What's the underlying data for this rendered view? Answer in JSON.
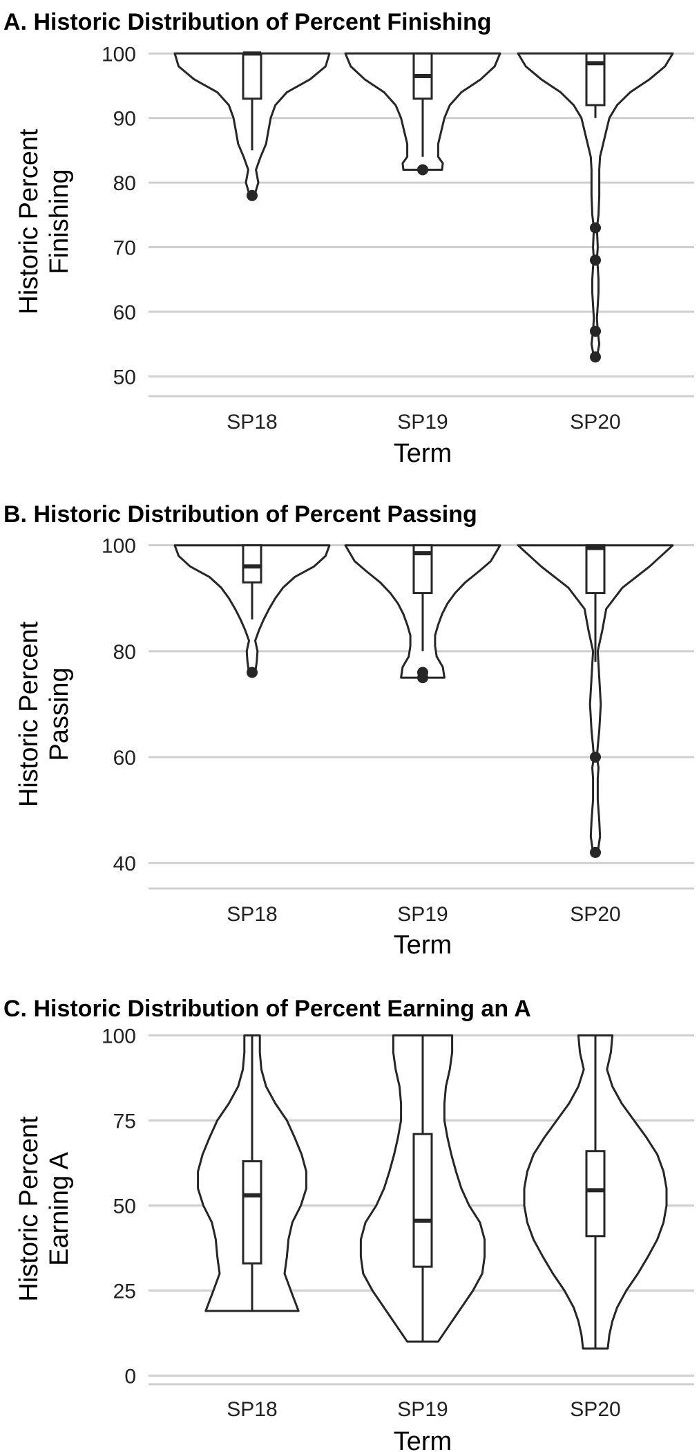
{
  "chart_data": [
    {
      "type": "violin",
      "title": "A. Historic Distribution of Percent Finishing",
      "xlabel": "Term",
      "ylabel": [
        "Historic Percent",
        "Finishing"
      ],
      "categories": [
        "SP18",
        "SP19",
        "SP20"
      ],
      "ylim": [
        48,
        101
      ],
      "yticks": [
        50,
        60,
        70,
        80,
        90,
        100
      ],
      "grid": true,
      "box": [
        {
          "min": 85,
          "q1": 93,
          "median": 100,
          "q3": 100,
          "max": 100
        },
        {
          "min": 84,
          "q1": 93,
          "median": 96.5,
          "q3": 100,
          "max": 100
        },
        {
          "min": 90,
          "q1": 92,
          "median": 98.5,
          "q3": 100,
          "max": 100
        }
      ],
      "outliers": [
        [
          78
        ],
        [
          82
        ],
        [
          73,
          68,
          57,
          53
        ]
      ],
      "violin": [
        {
          "y": [
            78,
            80,
            82,
            84,
            86,
            88,
            90,
            92,
            94,
            96,
            98,
            100
          ],
          "w": [
            0.03,
            0.08,
            0.05,
            0.11,
            0.18,
            0.21,
            0.24,
            0.3,
            0.45,
            0.75,
            0.95,
            1.0
          ]
        },
        {
          "y": [
            82,
            83,
            84,
            86,
            88,
            90,
            92,
            94,
            96,
            98,
            100
          ],
          "w": [
            0.25,
            0.26,
            0.2,
            0.2,
            0.24,
            0.28,
            0.35,
            0.5,
            0.75,
            0.93,
            1.0
          ]
        },
        {
          "y": [
            53,
            55,
            57,
            59,
            61,
            63,
            65,
            67,
            68,
            70,
            73,
            75,
            78,
            80,
            82,
            84,
            86,
            88,
            90,
            92,
            94,
            96,
            98,
            100
          ],
          "w": [
            0.02,
            0.05,
            0.03,
            0.02,
            0.03,
            0.04,
            0.04,
            0.03,
            0.02,
            0.03,
            0.02,
            0.04,
            0.05,
            0.05,
            0.05,
            0.06,
            0.1,
            0.14,
            0.18,
            0.28,
            0.45,
            0.7,
            0.9,
            1.0
          ]
        }
      ]
    },
    {
      "type": "violin",
      "title": "B. Historic Distribution of Percent Passing",
      "xlabel": "Term",
      "ylabel": [
        "Historic Percent",
        "Passing"
      ],
      "categories": [
        "SP18",
        "SP19",
        "SP20"
      ],
      "ylim": [
        36.5,
        101
      ],
      "yticks": [
        40,
        60,
        80,
        100
      ],
      "grid": true,
      "box": [
        {
          "min": 86,
          "q1": 93,
          "median": 96,
          "q3": 100,
          "max": 100
        },
        {
          "min": 80,
          "q1": 91,
          "median": 98.5,
          "q3": 100,
          "max": 100
        },
        {
          "min": 78,
          "q1": 91,
          "median": 99.5,
          "q3": 100,
          "max": 100
        }
      ],
      "outliers": [
        [
          76
        ],
        [
          76,
          75
        ],
        [
          60,
          42
        ]
      ],
      "violin": [
        {
          "y": [
            76,
            78,
            80,
            82,
            84,
            86,
            88,
            90,
            92,
            94,
            96,
            98,
            100
          ],
          "w": [
            0.04,
            0.06,
            0.07,
            0.04,
            0.09,
            0.15,
            0.22,
            0.3,
            0.4,
            0.55,
            0.8,
            0.95,
            1.0
          ]
        },
        {
          "y": [
            75,
            77,
            79,
            81,
            83,
            85,
            87,
            89,
            91,
            93,
            95,
            97,
            100
          ],
          "w": [
            0.28,
            0.26,
            0.18,
            0.16,
            0.16,
            0.2,
            0.25,
            0.32,
            0.42,
            0.55,
            0.72,
            0.88,
            1.0
          ]
        },
        {
          "y": [
            42,
            45,
            48,
            52,
            56,
            58,
            60,
            62,
            65,
            70,
            75,
            80,
            84,
            88,
            92,
            96,
            100
          ],
          "w": [
            0.03,
            0.06,
            0.05,
            0.03,
            0.03,
            0.04,
            0.02,
            0.03,
            0.05,
            0.07,
            0.05,
            0.03,
            0.09,
            0.14,
            0.35,
            0.7,
            1.0
          ]
        }
      ]
    },
    {
      "type": "violin",
      "title": "C. Historic Distribution of Percent Earning an A",
      "xlabel": "Term",
      "ylabel": [
        "Historic Percent",
        "Earning A"
      ],
      "categories": [
        "SP18",
        "SP19",
        "SP20"
      ],
      "ylim": [
        -0.5,
        100.5
      ],
      "yticks": [
        0,
        25,
        50,
        75,
        100
      ],
      "grid": true,
      "box": [
        {
          "min": 19,
          "q1": 33,
          "median": 53,
          "q3": 63,
          "max": 100
        },
        {
          "min": 10,
          "q1": 32,
          "median": 45.5,
          "q3": 71,
          "max": 100
        },
        {
          "min": 8,
          "q1": 41,
          "median": 54.5,
          "q3": 66,
          "max": 100
        }
      ],
      "outliers": [
        [],
        [],
        []
      ],
      "violin": [
        {
          "y": [
            19,
            25,
            30,
            35,
            40,
            45,
            50,
            55,
            60,
            65,
            70,
            75,
            80,
            85,
            90,
            95,
            100
          ],
          "w": [
            0.6,
            0.5,
            0.42,
            0.45,
            0.47,
            0.52,
            0.63,
            0.7,
            0.7,
            0.64,
            0.55,
            0.45,
            0.3,
            0.18,
            0.12,
            0.1,
            0.1
          ]
        },
        {
          "y": [
            10,
            15,
            20,
            25,
            30,
            35,
            40,
            45,
            50,
            55,
            60,
            65,
            70,
            75,
            80,
            85,
            90,
            95,
            100
          ],
          "w": [
            0.2,
            0.35,
            0.5,
            0.65,
            0.77,
            0.8,
            0.8,
            0.74,
            0.6,
            0.5,
            0.43,
            0.37,
            0.32,
            0.28,
            0.28,
            0.3,
            0.35,
            0.38,
            0.38
          ]
        },
        {
          "y": [
            8,
            12,
            16,
            20,
            25,
            30,
            35,
            40,
            45,
            50,
            55,
            60,
            65,
            70,
            75,
            80,
            85,
            90,
            95,
            100
          ],
          "w": [
            0.16,
            0.18,
            0.22,
            0.28,
            0.4,
            0.55,
            0.68,
            0.8,
            0.88,
            0.92,
            0.92,
            0.88,
            0.8,
            0.66,
            0.5,
            0.34,
            0.22,
            0.15,
            0.2,
            0.22
          ]
        }
      ]
    }
  ]
}
